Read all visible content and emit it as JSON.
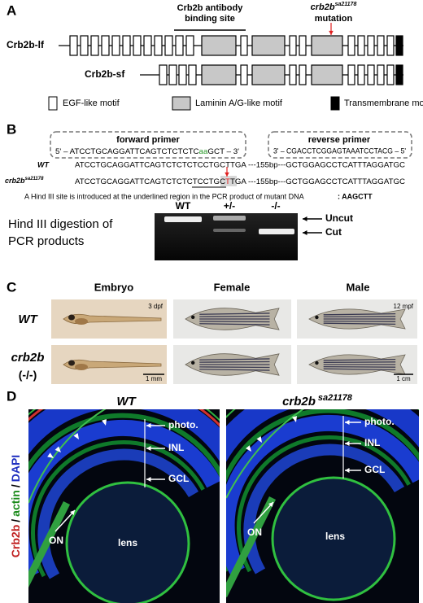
{
  "panel_a": {
    "label": "A",
    "antibody_site": [
      "Crb2b antibody",
      "binding site"
    ],
    "mutation": {
      "gene": "crb2b",
      "allele": "sa21178",
      "label": "mutation"
    },
    "isoforms": [
      "Crb2b-lf",
      "Crb2b-sf"
    ],
    "legend": [
      "EGF-like motif",
      "Laminin A/G-like motif",
      "Transmembrane motif"
    ]
  },
  "panel_b": {
    "label": "B",
    "forward_primer": {
      "title": "forward primer",
      "sequence": [
        "5' – ATCCTGCAGGATTCAGTCTCTCTC",
        "aa",
        "GCT – 3'"
      ]
    },
    "reverse_primer": {
      "title": "reverse primer",
      "sequence": "3' – CGACCTCGGAGTAAATCCTACG – 5'"
    },
    "wt": {
      "label": "WT",
      "sequence": "ATCCTGCAGGATTCAGTCTCTCTCCTGCTTGA ---155bp---GCTGGAGCCTCATTTAGGATGC"
    },
    "mutant": {
      "gene": "crb2b",
      "allele": "sa21178",
      "sequence": [
        "ATCCTGCAGGATTCAGTCTCTCTCCTGC",
        "T",
        "TGA ---155bp---GCTGGAGCCTCATTTAGGATGC"
      ]
    },
    "note": "A Hind III site is introduced at the underlined region in the PCR product of mutant DNA",
    "site": ": AAGCTT",
    "gel": {
      "title": [
        "Hind III digestion of",
        "PCR products"
      ],
      "lanes": [
        "WT",
        "+/-",
        "-/-"
      ],
      "bands": [
        "Uncut",
        "Cut"
      ]
    }
  },
  "panel_c": {
    "label": "C",
    "columns": [
      "Embryo",
      "Female",
      "Male"
    ],
    "rows": [
      [
        "WT"
      ],
      [
        "crb2b",
        "(-/-)"
      ]
    ],
    "ages": [
      "3 dpf",
      "12 mpf"
    ],
    "scale_bars": [
      "1 mm",
      "1 cm"
    ]
  },
  "panel_d": {
    "label": "D",
    "stain": [
      "Crb2b",
      "/",
      "actin",
      "/",
      "DAPI"
    ],
    "titles": [
      {
        "text": "WT"
      },
      {
        "gene": "crb2b",
        "allele": "sa21178"
      }
    ],
    "layers": [
      "photo.",
      "INL",
      "GCL"
    ],
    "structures": [
      "ON",
      "lens"
    ]
  }
}
